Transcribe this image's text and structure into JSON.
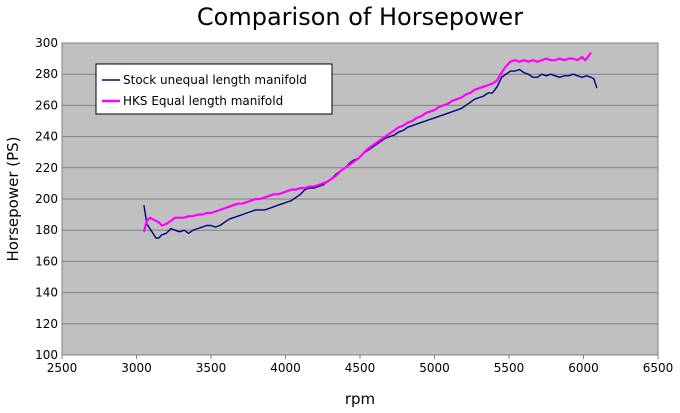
{
  "chart_data": {
    "type": "line",
    "title": "Comparison of Horsepower",
    "xlabel": "rpm",
    "ylabel": "Horsepower (PS)",
    "xlim": [
      2500,
      6500
    ],
    "ylim": [
      100,
      300
    ],
    "xticks": [
      "2500",
      "3000",
      "3500",
      "4000",
      "4500",
      "5000",
      "5500",
      "6000",
      "6500"
    ],
    "yticks": [
      "100",
      "120",
      "140",
      "160",
      "180",
      "200",
      "220",
      "240",
      "260",
      "280",
      "300"
    ],
    "grid": "horizontal",
    "legend_position": "top-left",
    "background": "#c0c0c0",
    "series": [
      {
        "name": "Stock unequal length manifold",
        "color": "#000080",
        "points": [
          [
            3050,
            196
          ],
          [
            3070,
            184
          ],
          [
            3090,
            181
          ],
          [
            3110,
            178
          ],
          [
            3130,
            175
          ],
          [
            3150,
            175
          ],
          [
            3170,
            177
          ],
          [
            3200,
            178
          ],
          [
            3230,
            181
          ],
          [
            3260,
            180
          ],
          [
            3290,
            179
          ],
          [
            3320,
            180
          ],
          [
            3350,
            178
          ],
          [
            3380,
            180
          ],
          [
            3410,
            181
          ],
          [
            3440,
            182
          ],
          [
            3470,
            183
          ],
          [
            3500,
            183
          ],
          [
            3530,
            182
          ],
          [
            3560,
            183
          ],
          [
            3590,
            185
          ],
          [
            3620,
            187
          ],
          [
            3650,
            188
          ],
          [
            3680,
            189
          ],
          [
            3710,
            190
          ],
          [
            3740,
            191
          ],
          [
            3770,
            192
          ],
          [
            3800,
            193
          ],
          [
            3830,
            193
          ],
          [
            3860,
            193
          ],
          [
            3890,
            194
          ],
          [
            3920,
            195
          ],
          [
            3950,
            196
          ],
          [
            3980,
            197
          ],
          [
            4010,
            198
          ],
          [
            4040,
            199
          ],
          [
            4070,
            201
          ],
          [
            4100,
            203
          ],
          [
            4130,
            206
          ],
          [
            4160,
            207
          ],
          [
            4190,
            207
          ],
          [
            4220,
            208
          ],
          [
            4250,
            209
          ],
          [
            4280,
            211
          ],
          [
            4310,
            213
          ],
          [
            4340,
            216
          ],
          [
            4370,
            218
          ],
          [
            4400,
            220
          ],
          [
            4430,
            223
          ],
          [
            4460,
            225
          ],
          [
            4490,
            226
          ],
          [
            4520,
            229
          ],
          [
            4550,
            231
          ],
          [
            4580,
            233
          ],
          [
            4610,
            235
          ],
          [
            4640,
            237
          ],
          [
            4670,
            239
          ],
          [
            4700,
            240
          ],
          [
            4730,
            241
          ],
          [
            4760,
            243
          ],
          [
            4790,
            244
          ],
          [
            4820,
            246
          ],
          [
            4850,
            247
          ],
          [
            4880,
            248
          ],
          [
            4910,
            249
          ],
          [
            4940,
            250
          ],
          [
            4970,
            251
          ],
          [
            5000,
            252
          ],
          [
            5030,
            253
          ],
          [
            5060,
            254
          ],
          [
            5090,
            255
          ],
          [
            5120,
            256
          ],
          [
            5150,
            257
          ],
          [
            5180,
            258
          ],
          [
            5210,
            260
          ],
          [
            5240,
            262
          ],
          [
            5270,
            264
          ],
          [
            5300,
            265
          ],
          [
            5330,
            266
          ],
          [
            5360,
            268
          ],
          [
            5390,
            268
          ],
          [
            5420,
            272
          ],
          [
            5450,
            278
          ],
          [
            5480,
            280
          ],
          [
            5510,
            282
          ],
          [
            5540,
            282
          ],
          [
            5570,
            283
          ],
          [
            5600,
            281
          ],
          [
            5630,
            280
          ],
          [
            5660,
            278
          ],
          [
            5690,
            278
          ],
          [
            5720,
            280
          ],
          [
            5750,
            279
          ],
          [
            5780,
            280
          ],
          [
            5810,
            279
          ],
          [
            5840,
            278
          ],
          [
            5870,
            279
          ],
          [
            5900,
            279
          ],
          [
            5930,
            280
          ],
          [
            5960,
            279
          ],
          [
            5990,
            278
          ],
          [
            6020,
            279
          ],
          [
            6050,
            278
          ],
          [
            6070,
            277
          ],
          [
            6090,
            271
          ]
        ]
      },
      {
        "name": "HKS Equal length manifold",
        "color": "#ff00ff",
        "points": [
          [
            3050,
            179
          ],
          [
            3070,
            186
          ],
          [
            3090,
            188
          ],
          [
            3110,
            187
          ],
          [
            3130,
            186
          ],
          [
            3150,
            185
          ],
          [
            3170,
            183
          ],
          [
            3200,
            184
          ],
          [
            3230,
            186
          ],
          [
            3260,
            188
          ],
          [
            3290,
            188
          ],
          [
            3320,
            188
          ],
          [
            3350,
            189
          ],
          [
            3380,
            189
          ],
          [
            3410,
            190
          ],
          [
            3440,
            190
          ],
          [
            3470,
            191
          ],
          [
            3500,
            191
          ],
          [
            3530,
            192
          ],
          [
            3560,
            193
          ],
          [
            3590,
            194
          ],
          [
            3620,
            195
          ],
          [
            3650,
            196
          ],
          [
            3680,
            197
          ],
          [
            3710,
            197
          ],
          [
            3740,
            198
          ],
          [
            3770,
            199
          ],
          [
            3800,
            200
          ],
          [
            3830,
            200
          ],
          [
            3860,
            201
          ],
          [
            3890,
            202
          ],
          [
            3920,
            203
          ],
          [
            3950,
            203
          ],
          [
            3980,
            204
          ],
          [
            4010,
            205
          ],
          [
            4040,
            206
          ],
          [
            4070,
            206
          ],
          [
            4100,
            207
          ],
          [
            4130,
            207
          ],
          [
            4160,
            208
          ],
          [
            4190,
            208
          ],
          [
            4220,
            209
          ],
          [
            4250,
            210
          ],
          [
            4280,
            211
          ],
          [
            4310,
            213
          ],
          [
            4340,
            215
          ],
          [
            4370,
            218
          ],
          [
            4400,
            220
          ],
          [
            4430,
            222
          ],
          [
            4460,
            224
          ],
          [
            4490,
            226
          ],
          [
            4520,
            229
          ],
          [
            4550,
            232
          ],
          [
            4580,
            234
          ],
          [
            4610,
            236
          ],
          [
            4640,
            238
          ],
          [
            4670,
            240
          ],
          [
            4700,
            242
          ],
          [
            4730,
            244
          ],
          [
            4760,
            246
          ],
          [
            4790,
            247
          ],
          [
            4820,
            249
          ],
          [
            4850,
            250
          ],
          [
            4880,
            252
          ],
          [
            4910,
            253
          ],
          [
            4940,
            255
          ],
          [
            4970,
            256
          ],
          [
            5000,
            257
          ],
          [
            5030,
            259
          ],
          [
            5060,
            260
          ],
          [
            5090,
            261
          ],
          [
            5120,
            263
          ],
          [
            5150,
            264
          ],
          [
            5180,
            265
          ],
          [
            5210,
            267
          ],
          [
            5240,
            268
          ],
          [
            5270,
            270
          ],
          [
            5300,
            271
          ],
          [
            5330,
            272
          ],
          [
            5360,
            273
          ],
          [
            5390,
            274
          ],
          [
            5420,
            276
          ],
          [
            5450,
            281
          ],
          [
            5480,
            285
          ],
          [
            5510,
            288
          ],
          [
            5540,
            289
          ],
          [
            5570,
            288
          ],
          [
            5600,
            289
          ],
          [
            5630,
            288
          ],
          [
            5660,
            289
          ],
          [
            5690,
            288
          ],
          [
            5720,
            289
          ],
          [
            5750,
            290
          ],
          [
            5780,
            289
          ],
          [
            5810,
            289
          ],
          [
            5840,
            290
          ],
          [
            5870,
            289
          ],
          [
            5900,
            290
          ],
          [
            5930,
            290
          ],
          [
            5960,
            289
          ],
          [
            5990,
            291
          ],
          [
            6010,
            289
          ],
          [
            6030,
            291
          ],
          [
            6050,
            294
          ]
        ]
      }
    ]
  }
}
